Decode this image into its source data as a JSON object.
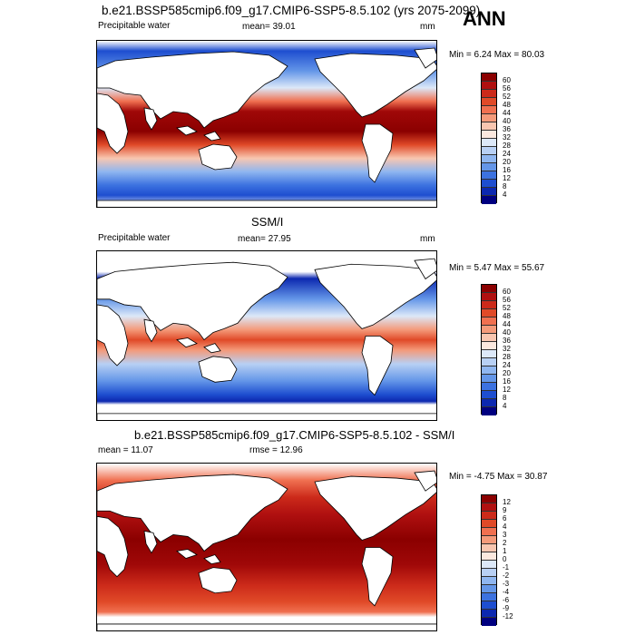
{
  "season": "ANN",
  "panels": [
    {
      "title": "b.e21.BSSP585cmip6.f09_g17.CMIP6-SSP5-8.5.102 (yrs 2075-2099)",
      "left_label": "Precipitable water",
      "mean": "mean=  39.01",
      "units": "mm",
      "minmax": "Min =   6.24 Max =  80.03",
      "levels": [
        "60",
        "56",
        "52",
        "48",
        "44",
        "40",
        "36",
        "32",
        "28",
        "24",
        "20",
        "16",
        "12",
        "8",
        "4"
      ],
      "colors": [
        "#8b0000",
        "#b01010",
        "#cc2a1a",
        "#e04a28",
        "#f07050",
        "#f49a7a",
        "#f8c6b0",
        "#fbe8de",
        "#dce8f8",
        "#b8d0f4",
        "#8fb6f0",
        "#6496e8",
        "#3c72e0",
        "#1e4ed0",
        "#0c28b0",
        "#000080"
      ]
    },
    {
      "title": "SSM/I",
      "left_label": "Precipitable water",
      "mean": "mean=  27.95",
      "units": "mm",
      "minmax": "Min =   5.47 Max =  55.67",
      "levels": [
        "60",
        "56",
        "52",
        "48",
        "44",
        "40",
        "36",
        "32",
        "28",
        "24",
        "20",
        "16",
        "12",
        "8",
        "4"
      ],
      "colors": [
        "#8b0000",
        "#b01010",
        "#cc2a1a",
        "#e04a28",
        "#f07050",
        "#f49a7a",
        "#f8c6b0",
        "#fbe8de",
        "#dce8f8",
        "#b8d0f4",
        "#8fb6f0",
        "#6496e8",
        "#3c72e0",
        "#1e4ed0",
        "#0c28b0",
        "#000080"
      ]
    },
    {
      "title": "b.e21.BSSP585cmip6.f09_g17.CMIP6-SSP5-8.5.102 - SSM/I",
      "left_label": "mean =  11.07",
      "mean": "rmse =  12.96",
      "units": "",
      "minmax": "Min =  -4.75 Max =  30.87",
      "levels": [
        "12",
        "9",
        "6",
        "4",
        "3",
        "2",
        "1",
        "0",
        "-1",
        "-2",
        "-3",
        "-4",
        "-6",
        "-9",
        "-12"
      ],
      "colors": [
        "#8b0000",
        "#b01010",
        "#cc2a1a",
        "#e04a28",
        "#f07050",
        "#f49a7a",
        "#f8c6b0",
        "#fbe8de",
        "#dce8f8",
        "#b8d0f4",
        "#8fb6f0",
        "#6496e8",
        "#3c72e0",
        "#1e4ed0",
        "#0c28b0",
        "#000080"
      ]
    }
  ]
}
